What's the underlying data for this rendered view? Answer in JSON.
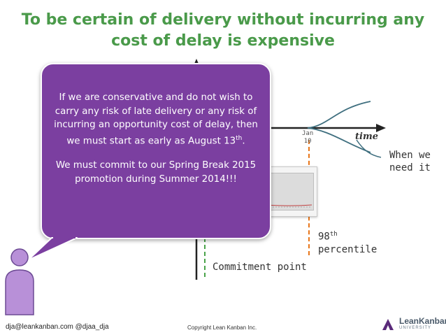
{
  "title": {
    "line1": "To be certain of delivery without incurring any",
    "line2": "cost of delay is expensive"
  },
  "axis": {
    "x_label": "time",
    "date_month": "Jan",
    "date_day": "10"
  },
  "annotations": {
    "when_needed": "When we need it",
    "percentile_num": "98",
    "percentile_sup": "th",
    "percentile_word": "percentile",
    "commitment": "Commitment point"
  },
  "bubble": {
    "para1_main": "If we are conservative and do not wish to carry any risk of late delivery or any risk of incurring an opportunity cost of delay, then we must start as early as August 13",
    "para1_sup": "th",
    "para1_end": ".",
    "para2": "We must commit to our Spring Break 2015 promotion during Summer 2014!!!"
  },
  "footer": {
    "contact": "dja@leankanban.com @djaa_dja",
    "copyright": "Copyright Lean Kanban Inc.",
    "logo_name": "LeanKanban",
    "logo_sub": "UNIVERSITY"
  },
  "colors": {
    "title": "#4a9a4a",
    "bubble": "#7b3fa0",
    "deadline_line": "#e8761a",
    "commit_line": "#49a349",
    "curve": "#3f6f7f",
    "avatar": "#b890d8"
  }
}
